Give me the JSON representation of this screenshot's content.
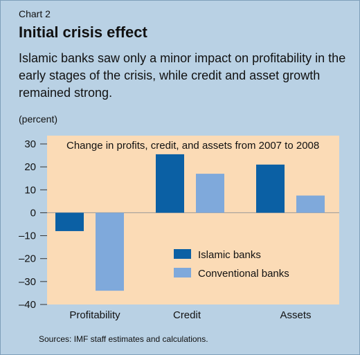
{
  "header": {
    "chart_number": "Chart 2",
    "title": "Initial crisis effect",
    "subtitle": "Islamic banks saw only a minor impact on profitability in the early stages of the crisis, while credit and asset growth remained strong.",
    "units": "(percent)"
  },
  "source": "Sources: IMF staff estimates and calculations.",
  "colors": {
    "background": "#b9d1e4",
    "plot_area": "#fbdbb6",
    "islamic": "#0b60a4",
    "conventional": "#7fa9db"
  },
  "chart_data": {
    "type": "bar",
    "title": "Change in profits, credit, and assets from 2007 to 2008",
    "categories": [
      "Profitability",
      "Credit",
      "Assets"
    ],
    "series": [
      {
        "name": "Islamic banks",
        "values": [
          -8,
          25.5,
          21
        ]
      },
      {
        "name": "Conventional banks",
        "values": [
          -34,
          17,
          7.5
        ]
      }
    ],
    "ylim": [
      -40,
      30
    ],
    "yticks": [
      30,
      20,
      10,
      0,
      -10,
      -20,
      -30,
      -40
    ],
    "ytick_labels": [
      "30",
      "20",
      "10",
      "0",
      "–10",
      "–20",
      "–30",
      "–40"
    ],
    "legend_position": "center-right",
    "grid": false
  }
}
